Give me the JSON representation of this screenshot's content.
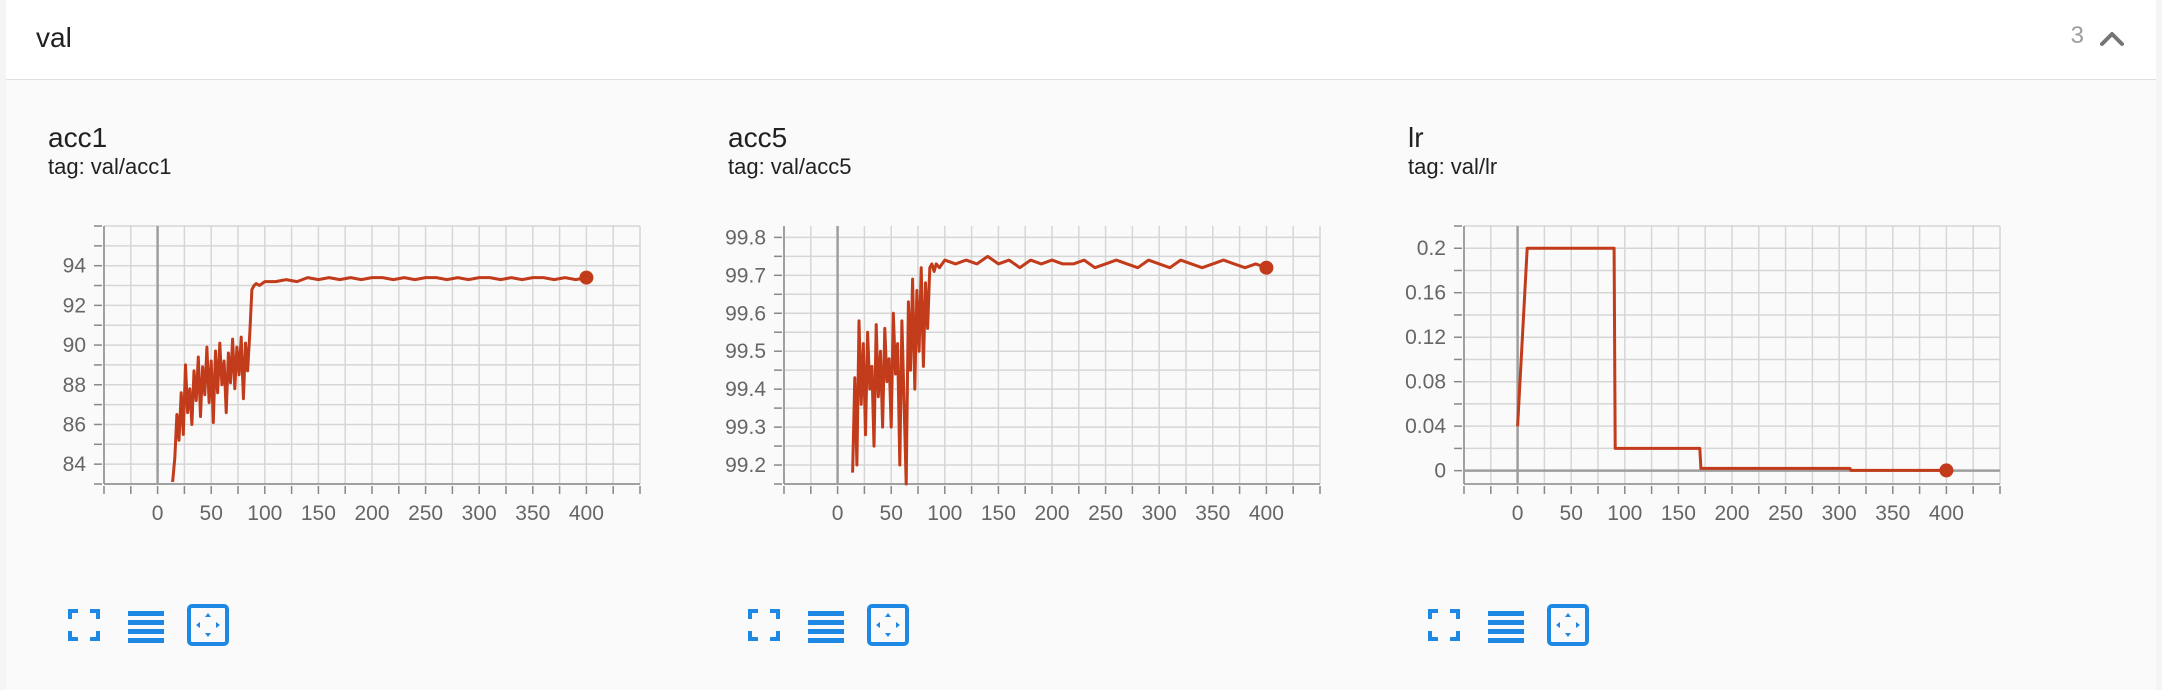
{
  "section": {
    "title": "val",
    "count": "3",
    "collapse_icon": "chevron-up-icon"
  },
  "colors": {
    "series": "#c23b1b",
    "grid": "#d6d6d6",
    "zero_axis": "#9e9e9e",
    "toolbar_icon": "#1e88e5"
  },
  "toolbar_icons": [
    "fullscreen-icon",
    "toggle-log-scale-icon",
    "fit-domain-icon"
  ],
  "chart_data": [
    {
      "type": "line",
      "title": "acc1",
      "subtitle": "tag: val/acc1",
      "xlabel": "",
      "ylabel": "",
      "xlim": [
        -50,
        450
      ],
      "ylim": [
        83,
        96
      ],
      "x_ticks": [
        "0",
        "50",
        "100",
        "150",
        "200",
        "250",
        "300",
        "350",
        "400"
      ],
      "y_ticks": [
        "84",
        "86",
        "88",
        "90",
        "92",
        "94"
      ],
      "grid": true,
      "series": [
        {
          "x": [
            14,
            16,
            18,
            20,
            22,
            24,
            26,
            28,
            30,
            32,
            34,
            36,
            38,
            40,
            42,
            44,
            46,
            48,
            50,
            52,
            54,
            56,
            58,
            60,
            62,
            64,
            66,
            68,
            70,
            72,
            74,
            76,
            78,
            80,
            82,
            84,
            86,
            88,
            90,
            92,
            95,
            100,
            110,
            120,
            130,
            140,
            150,
            160,
            170,
            180,
            190,
            200,
            210,
            220,
            230,
            240,
            250,
            260,
            270,
            280,
            290,
            300,
            310,
            320,
            330,
            340,
            350,
            360,
            370,
            380,
            390,
            400
          ],
          "y": [
            83.1,
            84.3,
            86.5,
            85.2,
            87.6,
            85.5,
            89.0,
            86.6,
            87.8,
            86.0,
            88.7,
            87.2,
            89.4,
            86.4,
            88.9,
            87.5,
            89.9,
            87.1,
            89.2,
            86.1,
            89.7,
            87.6,
            90.1,
            88.0,
            89.2,
            86.6,
            89.6,
            88.1,
            90.3,
            87.8,
            89.9,
            88.5,
            90.4,
            87.3,
            90.1,
            88.7,
            90.6,
            92.8,
            93.0,
            93.1,
            93.0,
            93.2,
            93.2,
            93.3,
            93.2,
            93.4,
            93.3,
            93.4,
            93.3,
            93.4,
            93.3,
            93.4,
            93.4,
            93.3,
            93.4,
            93.3,
            93.4,
            93.4,
            93.3,
            93.4,
            93.3,
            93.4,
            93.4,
            93.3,
            93.4,
            93.3,
            93.4,
            93.4,
            93.3,
            93.4,
            93.3,
            93.4
          ]
        }
      ]
    },
    {
      "type": "line",
      "title": "acc5",
      "subtitle": "tag: val/acc5",
      "xlabel": "",
      "ylabel": "",
      "xlim": [
        -50,
        450
      ],
      "ylim": [
        99.15,
        99.83
      ],
      "x_ticks": [
        "0",
        "50",
        "100",
        "150",
        "200",
        "250",
        "300",
        "350",
        "400"
      ],
      "y_ticks": [
        "99.2",
        "99.3",
        "99.4",
        "99.5",
        "99.6",
        "99.7",
        "99.8"
      ],
      "grid": true,
      "series": [
        {
          "x": [
            14,
            16,
            18,
            20,
            22,
            24,
            26,
            28,
            30,
            32,
            34,
            36,
            38,
            40,
            42,
            44,
            46,
            48,
            50,
            52,
            54,
            56,
            58,
            60,
            62,
            64,
            66,
            68,
            70,
            72,
            74,
            76,
            78,
            80,
            82,
            84,
            86,
            88,
            90,
            92,
            95,
            100,
            110,
            120,
            130,
            140,
            150,
            160,
            170,
            180,
            190,
            200,
            210,
            220,
            230,
            240,
            250,
            260,
            270,
            280,
            290,
            300,
            310,
            320,
            330,
            340,
            350,
            360,
            370,
            380,
            390,
            400
          ],
          "y": [
            99.18,
            99.43,
            99.2,
            99.58,
            99.36,
            99.52,
            99.28,
            99.55,
            99.4,
            99.46,
            99.25,
            99.57,
            99.38,
            99.5,
            99.3,
            99.56,
            99.42,
            99.48,
            99.3,
            99.6,
            99.44,
            99.52,
            99.2,
            99.58,
            99.36,
            99.15,
            99.63,
            99.45,
            99.69,
            99.4,
            99.66,
            99.5,
            99.72,
            99.46,
            99.68,
            99.56,
            99.72,
            99.73,
            99.71,
            99.73,
            99.72,
            99.74,
            99.73,
            99.74,
            99.73,
            99.75,
            99.73,
            99.74,
            99.72,
            99.74,
            99.73,
            99.74,
            99.73,
            99.73,
            99.74,
            99.72,
            99.73,
            99.74,
            99.73,
            99.72,
            99.74,
            99.73,
            99.72,
            99.74,
            99.73,
            99.72,
            99.73,
            99.74,
            99.73,
            99.72,
            99.73,
            99.72
          ]
        }
      ]
    },
    {
      "type": "line",
      "title": "lr",
      "subtitle": "tag: val/lr",
      "xlabel": "",
      "ylabel": "",
      "xlim": [
        -50,
        450
      ],
      "ylim": [
        -0.012,
        0.22
      ],
      "x_ticks": [
        "0",
        "50",
        "100",
        "150",
        "200",
        "250",
        "300",
        "350",
        "400"
      ],
      "y_ticks": [
        "0",
        "0.04",
        "0.08",
        "0.12",
        "0.16",
        "0.2"
      ],
      "grid": true,
      "series": [
        {
          "x": [
            0,
            9,
            90,
            91,
            170,
            171,
            310,
            311,
            400
          ],
          "y": [
            0.04,
            0.2,
            0.2,
            0.02,
            0.02,
            0.002,
            0.002,
            0.0002,
            0.0002
          ]
        }
      ]
    }
  ]
}
